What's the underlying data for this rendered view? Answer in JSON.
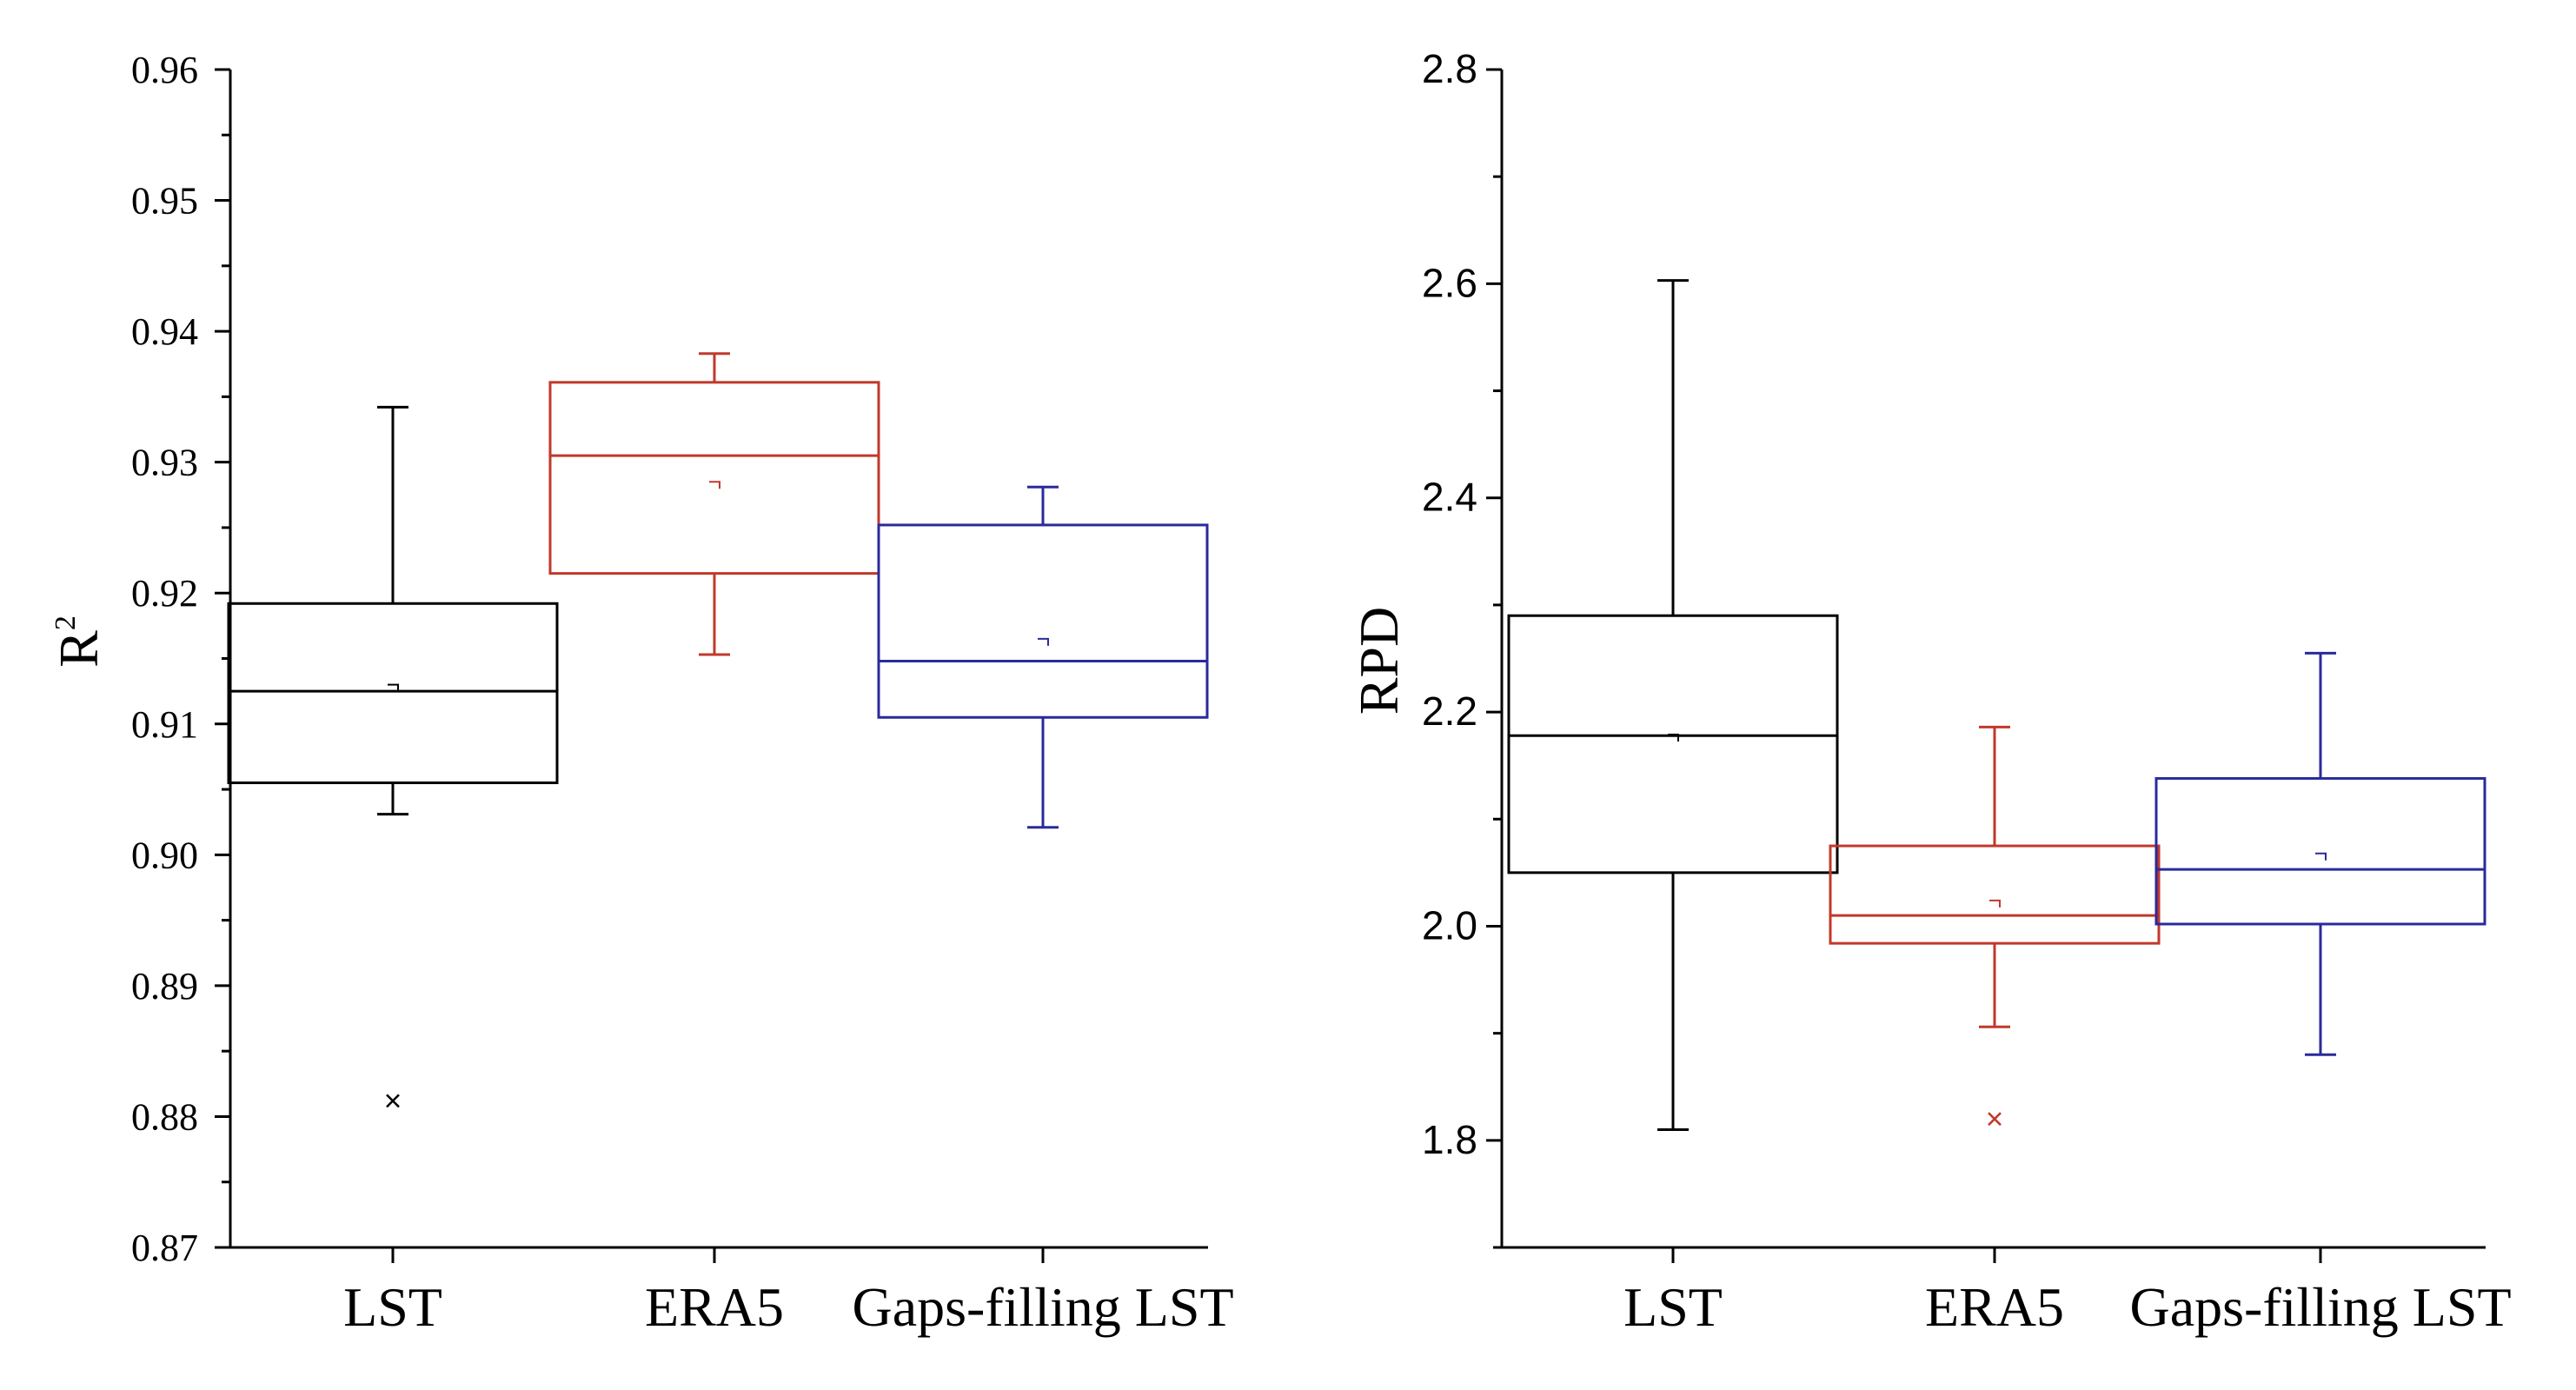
{
  "chart_data": [
    {
      "type": "box",
      "title": "",
      "xlabel": "",
      "ylabel": "R",
      "ylabel_sup": "2",
      "ylim": [
        0.87,
        0.96
      ],
      "yticks": [
        "0.87",
        "0.88",
        "0.89",
        "0.90",
        "0.91",
        "0.92",
        "0.93",
        "0.94",
        "0.95",
        "0.96"
      ],
      "categories": [
        "LST",
        "ERA5",
        "Gaps-filling LST"
      ],
      "colors": [
        "#000000",
        "#c0392b",
        "#2a2a9c"
      ],
      "grid": false,
      "series": [
        {
          "q1": 0.9055,
          "median": 0.9125,
          "q3": 0.9192,
          "whisker_low": 0.9031,
          "whisker_high": 0.9342,
          "mean": 0.913,
          "outliers": [
            0.8812
          ]
        },
        {
          "q1": 0.9215,
          "median": 0.9305,
          "q3": 0.9361,
          "whisker_low": 0.9153,
          "whisker_high": 0.9383,
          "mean": 0.9285,
          "outliers": []
        },
        {
          "q1": 0.9105,
          "median": 0.9148,
          "q3": 0.9252,
          "whisker_low": 0.9021,
          "whisker_high": 0.9281,
          "mean": 0.9165,
          "outliers": []
        }
      ]
    },
    {
      "type": "box",
      "title": "",
      "xlabel": "",
      "ylabel": "RPD",
      "ylim": [
        1.7,
        2.8
      ],
      "yticks": [
        "1.8",
        "2.0",
        "2.2",
        "2.4",
        "2.6",
        "2.8"
      ],
      "categories": [
        "LST",
        "ERA5",
        "Gaps-filling LST"
      ],
      "colors": [
        "#000000",
        "#c0392b",
        "#2a2a9c"
      ],
      "grid": false,
      "series": [
        {
          "q1": 2.05,
          "median": 2.178,
          "q3": 2.29,
          "whisker_low": 1.81,
          "whisker_high": 2.603,
          "mean": 2.179,
          "outliers": []
        },
        {
          "q1": 1.984,
          "median": 2.01,
          "q3": 2.075,
          "whisker_low": 1.906,
          "whisker_high": 2.186,
          "mean": 2.024,
          "outliers": [
            1.82
          ]
        },
        {
          "q1": 2.002,
          "median": 2.053,
          "q3": 2.138,
          "whisker_low": 1.88,
          "whisker_high": 2.255,
          "mean": 2.068,
          "outliers": []
        }
      ]
    }
  ]
}
